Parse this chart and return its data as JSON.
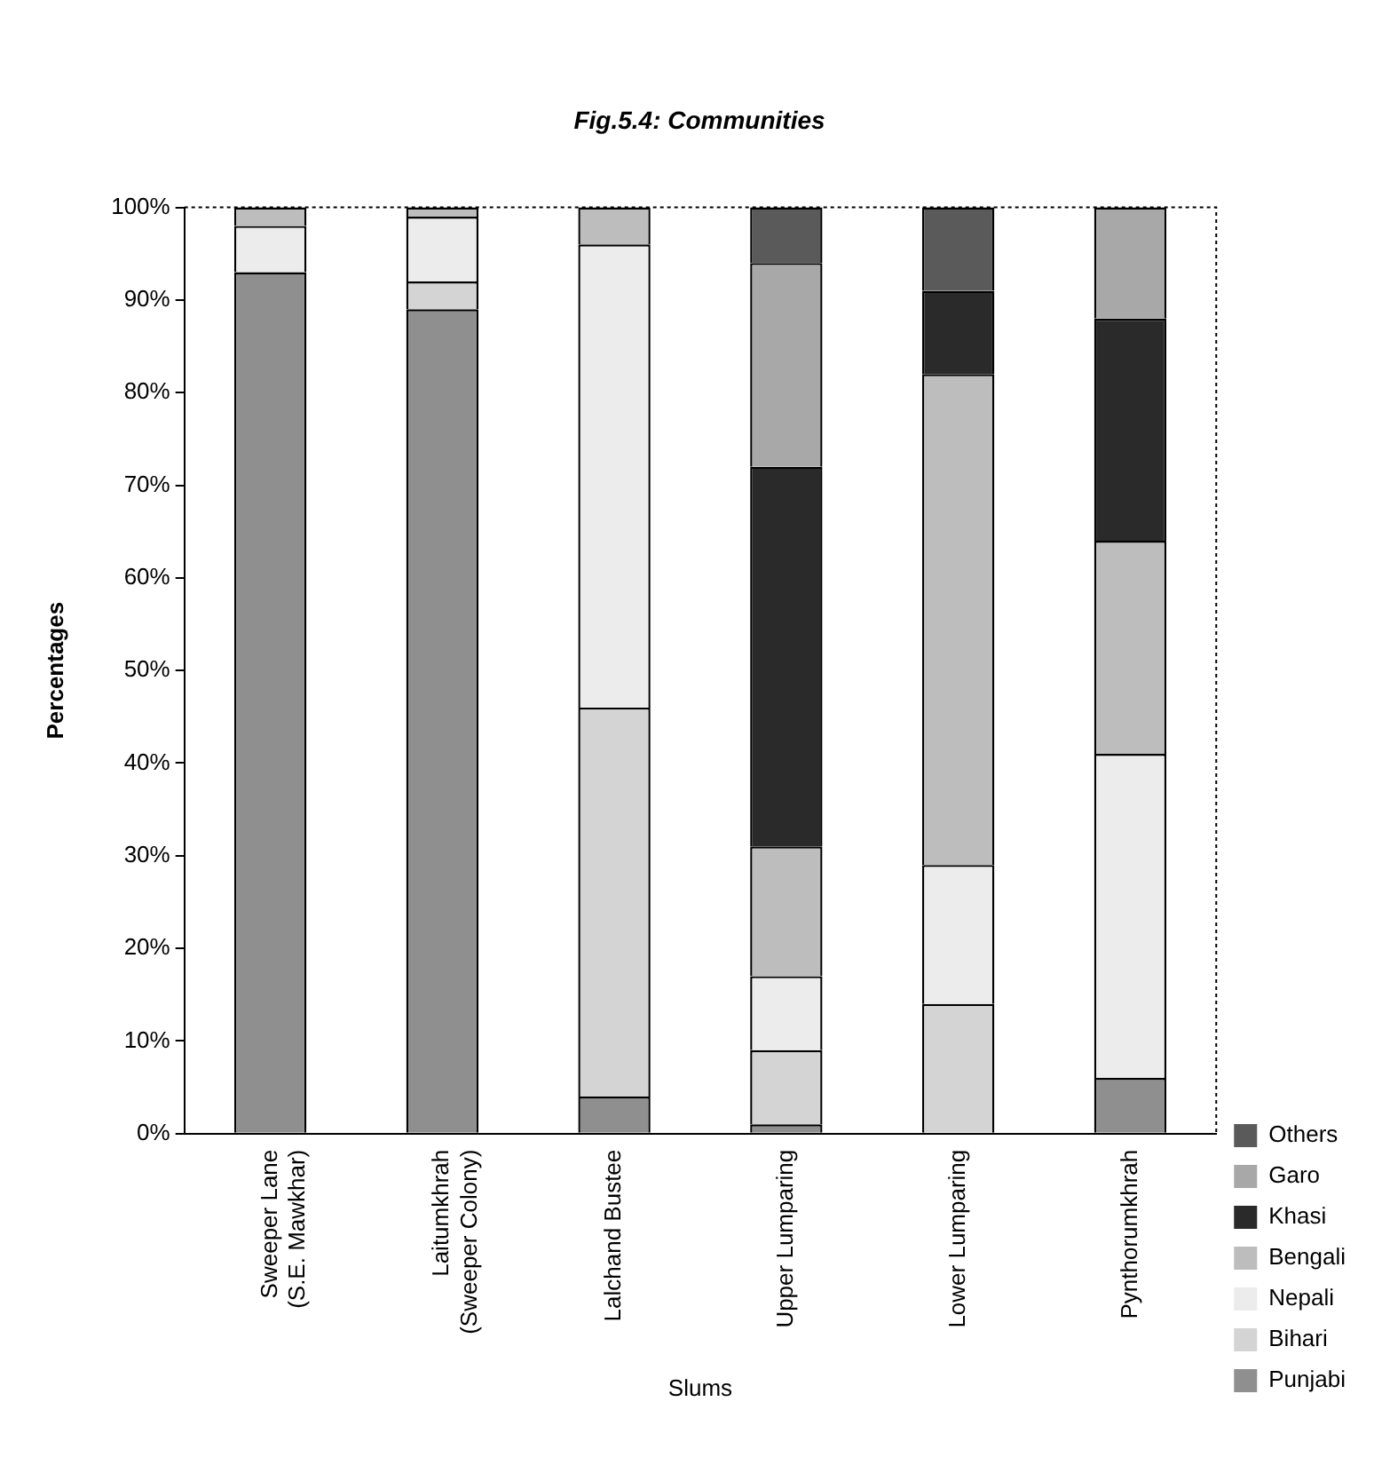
{
  "chart_data": {
    "type": "bar",
    "title": "Fig.5.4: Communities",
    "xlabel": "Slums",
    "ylabel": "Percentages",
    "categories": [
      "Sweeper Lane\n(S.E. Mawkhar)",
      "Laitumkhrah\n(Sweeper Colony)",
      "Lalchand Bustee",
      "Upper Lumparing",
      "Lower Lumparing",
      "Pynthorumkhrah"
    ],
    "stacked": true,
    "ylim": [
      0,
      100
    ],
    "yticks": [
      {
        "value": 0,
        "label": "0%"
      },
      {
        "value": 10,
        "label": "10%"
      },
      {
        "value": 20,
        "label": "20%"
      },
      {
        "value": 30,
        "label": "30%"
      },
      {
        "value": 40,
        "label": "40%"
      },
      {
        "value": 50,
        "label": "50%"
      },
      {
        "value": 60,
        "label": "60%"
      },
      {
        "value": 70,
        "label": "70%"
      },
      {
        "value": 80,
        "label": "80%"
      },
      {
        "value": 90,
        "label": "90%"
      },
      {
        "value": 100,
        "label": "100%"
      }
    ],
    "grid": false,
    "legend": "bottom right",
    "series": [
      {
        "name": "Punjabi",
        "color": "#8f8f8f",
        "values": [
          93,
          89,
          4,
          1,
          0,
          6
        ]
      },
      {
        "name": "Bihari",
        "color": "#d4d4d4",
        "values": [
          0,
          3,
          42,
          8,
          14,
          0
        ]
      },
      {
        "name": "Nepali",
        "color": "#ececec",
        "values": [
          5,
          7,
          50,
          8,
          15,
          35
        ]
      },
      {
        "name": "Bengali",
        "color": "#bdbdbd",
        "values": [
          2,
          1,
          4,
          14,
          53,
          23
        ]
      },
      {
        "name": "Khasi",
        "color": "#2a2a2a",
        "values": [
          0,
          0,
          0,
          41,
          9,
          24
        ]
      },
      {
        "name": "Garo",
        "color": "#a8a8a8",
        "values": [
          0,
          0,
          0,
          22,
          0,
          12
        ]
      },
      {
        "name": "Others",
        "color": "#5a5a5a",
        "values": [
          0,
          0,
          0,
          6,
          9,
          0
        ]
      }
    ]
  }
}
